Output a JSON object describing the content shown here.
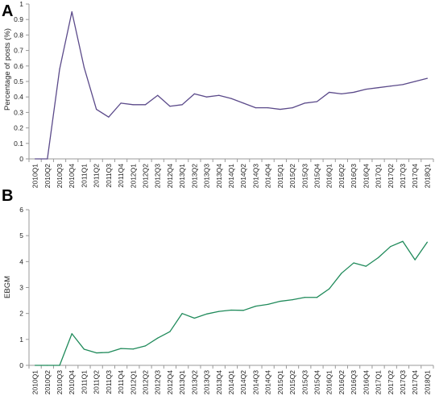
{
  "chart_data": [
    {
      "panel_label": "A",
      "type": "line",
      "ylabel": "Percentage of posts (%)",
      "xlabel": "",
      "ylim": [
        0,
        1
      ],
      "yticks": [
        "0",
        "0.1",
        "0.2",
        "0.3",
        "0.4",
        "0.5",
        "0.6",
        "0.7",
        "0.8",
        "0.9",
        "1"
      ],
      "grid": false,
      "color": "#5b4a8a",
      "categories": [
        "2010Q1",
        "2010Q2",
        "2010Q3",
        "2010Q4",
        "2011Q1",
        "2011Q2",
        "2011Q3",
        "2011Q4",
        "2012Q1",
        "2012Q2",
        "2012Q3",
        "2012Q4",
        "2013Q1",
        "2013Q2",
        "2013Q3",
        "2013Q4",
        "2014Q1",
        "2014Q2",
        "2014Q3",
        "2014Q4",
        "2015Q1",
        "2015Q2",
        "2015Q3",
        "2015Q4",
        "2016Q1",
        "2016Q2",
        "2016Q3",
        "2016Q4",
        "2017Q1",
        "2017Q2",
        "2017Q3",
        "2017Q4",
        "2018Q1"
      ],
      "values": [
        0,
        0,
        0.58,
        0.95,
        0.59,
        0.32,
        0.27,
        0.36,
        0.35,
        0.35,
        0.41,
        0.34,
        0.35,
        0.42,
        0.4,
        0.41,
        0.39,
        0.36,
        0.33,
        0.33,
        0.32,
        0.33,
        0.36,
        0.37,
        0.43,
        0.42,
        0.43,
        0.45,
        0.46,
        0.47,
        0.48,
        0.5,
        0.52
      ]
    },
    {
      "panel_label": "B",
      "type": "line",
      "ylabel": "EBGM",
      "xlabel": "",
      "ylim": [
        0,
        6
      ],
      "yticks": [
        "0",
        "1",
        "2",
        "3",
        "4",
        "5",
        "6"
      ],
      "grid": false,
      "color": "#1f8a5a",
      "categories": [
        "2010Q1",
        "2010Q2",
        "2010Q3",
        "2010Q4",
        "2011Q1",
        "2011Q2",
        "2011Q3",
        "2011Q4",
        "2012Q1",
        "2012Q2",
        "2012Q3",
        "2012Q4",
        "2013Q1",
        "2013Q2",
        "2013Q3",
        "2013Q4",
        "2014Q1",
        "2014Q2",
        "2014Q3",
        "2014Q4",
        "2015Q1",
        "2015Q2",
        "2015Q3",
        "2015Q4",
        "2016Q1",
        "2016Q2",
        "2016Q3",
        "2016Q4",
        "2017Q1",
        "2017Q2",
        "2017Q3",
        "2017Q4",
        "2018Q1"
      ],
      "values": [
        0,
        0,
        0,
        1.22,
        0.62,
        0.48,
        0.5,
        0.65,
        0.63,
        0.75,
        1.05,
        1.3,
        2.0,
        1.82,
        1.98,
        2.08,
        2.13,
        2.12,
        2.28,
        2.35,
        2.47,
        2.53,
        2.62,
        2.62,
        2.95,
        3.55,
        3.95,
        3.82,
        4.15,
        4.58,
        4.78,
        4.07,
        4.75
      ]
    }
  ]
}
